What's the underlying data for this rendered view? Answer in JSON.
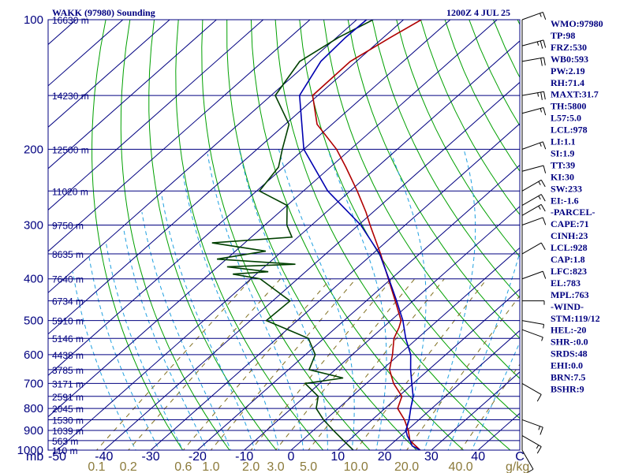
{
  "header": {
    "title": "WAKK (97980) Sounding",
    "time": "1200Z  4 JUL 25"
  },
  "footer": {
    "p_unit": "mb",
    "mix_unit": "g/kg"
  },
  "indices": [
    "WMO:97980",
    "TP:98",
    "FRZ:530",
    "WB0:593",
    "PW:2.19",
    "RH:71.4",
    "MAXT:31.7",
    "TH:5800",
    "L57:5.0",
    "LCL:978",
    "LI:1.1",
    "SI:1.9",
    "TT:39",
    "KI:30",
    "SW:233",
    "EI:-1.6",
    "-PARCEL-",
    "CAPE:71",
    "CINH:23",
    "LCL:928",
    "CAP:1.8",
    "LFC:823",
    "EL:783",
    "MPL:763",
    "-WIND-",
    "STM:119/12",
    "HEL:-20",
    "SHR-:0.0",
    "SRDS:48",
    "EHI:0.0",
    "BRN:7.5",
    "BSHR:9"
  ],
  "colors": {
    "frame": "#000080",
    "isobar": "#000080",
    "isotherm": "#000080",
    "dry_adiabat": "#00a000",
    "moist_adiabat": "#20a0e0",
    "mixing_ratio": "#807020",
    "temperature": "#b00000",
    "dewpoint": "#004000",
    "parcel": "#0000b0",
    "wind": "#000000"
  },
  "chart_data": {
    "type": "line",
    "title": "WAKK (97980) Sounding",
    "x_axis": {
      "label": "",
      "ticks": [
        -50,
        -40,
        -30,
        -20,
        -10,
        0,
        10,
        20,
        30,
        40
      ],
      "tick_labels": [
        "-50",
        "-40",
        "-30",
        "-20",
        "-10",
        "0",
        "10",
        "20",
        "30",
        "40",
        "C"
      ],
      "range": [
        -50,
        50
      ]
    },
    "y_axis": {
      "label": "mb",
      "scale": "log",
      "ticks": [
        100,
        200,
        300,
        400,
        500,
        600,
        700,
        800,
        900,
        1000
      ],
      "range": [
        1000,
        100
      ]
    },
    "heights": [
      {
        "p": 100,
        "label": "16630 m"
      },
      {
        "p": 150,
        "label": "14230 m"
      },
      {
        "p": 200,
        "label": "12500 m"
      },
      {
        "p": 250,
        "label": "11020 m"
      },
      {
        "p": 300,
        "label": "9750 m"
      },
      {
        "p": 350,
        "label": "8635 m"
      },
      {
        "p": 400,
        "label": "7640 m"
      },
      {
        "p": 450,
        "label": "6734 m"
      },
      {
        "p": 500,
        "label": "5910 m"
      },
      {
        "p": 550,
        "label": "5146 m"
      },
      {
        "p": 600,
        "label": "4438 m"
      },
      {
        "p": 650,
        "label": "3785 m"
      },
      {
        "p": 700,
        "label": "3171 m"
      },
      {
        "p": 750,
        "label": "2591 m"
      },
      {
        "p": 800,
        "label": "2045 m"
      },
      {
        "p": 850,
        "label": "1530 m"
      },
      {
        "p": 900,
        "label": "1039 m"
      },
      {
        "p": 950,
        "label": "563 m"
      },
      {
        "p": 1000,
        "label": "110 m"
      }
    ],
    "mixing_ratio_labels": [
      "0.1",
      "0.2",
      "0.6",
      "1.0",
      "2.0",
      "3.0",
      "5.0",
      "10.0",
      "20.0",
      "40.0"
    ],
    "series": [
      {
        "points": [
          [
            100,
            -76.2
          ],
          [
            110,
            -78.5
          ],
          [
            125,
            -81.3
          ],
          [
            150,
            -81.1
          ],
          [
            175,
            -73.2
          ],
          [
            200,
            -63.0
          ],
          [
            220,
            -56.7
          ],
          [
            250,
            -48.5
          ],
          [
            280,
            -41.5
          ],
          [
            300,
            -37.5
          ],
          [
            350,
            -28.3
          ],
          [
            400,
            -20.6
          ],
          [
            450,
            -13.8
          ],
          [
            500,
            -7.8
          ],
          [
            520,
            -6.5
          ],
          [
            550,
            -5.0
          ],
          [
            600,
            -1.4
          ],
          [
            650,
            1.6
          ],
          [
            700,
            5.8
          ],
          [
            750,
            10.7
          ],
          [
            800,
            12.7
          ],
          [
            850,
            16.9
          ],
          [
            900,
            20.3
          ],
          [
            950,
            23.1
          ],
          [
            1000,
            27.6
          ]
        ]
      },
      {
        "points": [
          [
            100,
            -86.5
          ],
          [
            110,
            -89.6
          ],
          [
            125,
            -92.1
          ],
          [
            150,
            -89.1
          ],
          [
            175,
            -79.2
          ],
          [
            200,
            -74.6
          ],
          [
            220,
            -71.1
          ],
          [
            250,
            -69.4
          ],
          [
            270,
            -60.0
          ],
          [
            300,
            -55.3
          ],
          [
            320,
            -51.3
          ],
          [
            330,
            -67.0
          ],
          [
            345,
            -53.5
          ],
          [
            360,
            -62.0
          ],
          [
            370,
            -44.0
          ],
          [
            375,
            -58.0
          ],
          [
            385,
            -48.0
          ],
          [
            390,
            -55.0
          ],
          [
            400,
            -48.0
          ],
          [
            450,
            -36.3
          ],
          [
            500,
            -36.6
          ],
          [
            550,
            -23.3
          ],
          [
            600,
            -17.9
          ],
          [
            650,
            -15.6
          ],
          [
            680,
            -6.3
          ],
          [
            700,
            -13.1
          ],
          [
            750,
            -7.2
          ],
          [
            800,
            -4.7
          ],
          [
            850,
            -0.4
          ],
          [
            900,
            4.3
          ],
          [
            950,
            8.9
          ],
          [
            1000,
            13.3
          ]
        ]
      },
      {
        "points": [
          [
            100,
            -87.9
          ],
          [
            110,
            -88.1
          ],
          [
            125,
            -87.6
          ],
          [
            150,
            -83.9
          ],
          [
            200,
            -70.0
          ],
          [
            250,
            -54.8
          ],
          [
            300,
            -39.5
          ],
          [
            350,
            -28.5
          ],
          [
            400,
            -20.5
          ],
          [
            450,
            -13.5
          ],
          [
            500,
            -7.4
          ],
          [
            550,
            -2.5
          ],
          [
            600,
            2.5
          ],
          [
            650,
            6.1
          ],
          [
            700,
            9.7
          ],
          [
            750,
            13.1
          ],
          [
            800,
            15.5
          ],
          [
            850,
            17.9
          ],
          [
            900,
            19.8
          ],
          [
            928,
            21.5
          ],
          [
            950,
            23.1
          ],
          [
            978,
            24.9
          ],
          [
            1000,
            27.6
          ]
        ]
      }
    ],
    "wind_barbs": [
      {
        "p": 100,
        "dir": 70,
        "spd": 15
      },
      {
        "p": 115,
        "dir": 75,
        "spd": 25
      },
      {
        "p": 125,
        "dir": 80,
        "spd": 20
      },
      {
        "p": 150,
        "dir": 80,
        "spd": 25
      },
      {
        "p": 165,
        "dir": 75,
        "spd": 15
      },
      {
        "p": 200,
        "dir": 70,
        "spd": 15
      },
      {
        "p": 225,
        "dir": 75,
        "spd": 10
      },
      {
        "p": 250,
        "dir": 60,
        "spd": 15
      },
      {
        "p": 270,
        "dir": 60,
        "spd": 15
      },
      {
        "p": 285,
        "dir": 60,
        "spd": 15
      },
      {
        "p": 300,
        "dir": 70,
        "spd": 10
      },
      {
        "p": 350,
        "dir": 60,
        "spd": 10
      },
      {
        "p": 400,
        "dir": 70,
        "spd": 10
      },
      {
        "p": 450,
        "dir": 90,
        "spd": 5
      },
      {
        "p": 500,
        "dir": 100,
        "spd": 5
      },
      {
        "p": 525,
        "dir": 110,
        "spd": 5
      },
      {
        "p": 700,
        "dir": 120,
        "spd": 10
      },
      {
        "p": 850,
        "dir": 110,
        "spd": 15
      },
      {
        "p": 925,
        "dir": 120,
        "spd": 15
      },
      {
        "p": 1000,
        "dir": 150,
        "spd": 10
      }
    ]
  }
}
